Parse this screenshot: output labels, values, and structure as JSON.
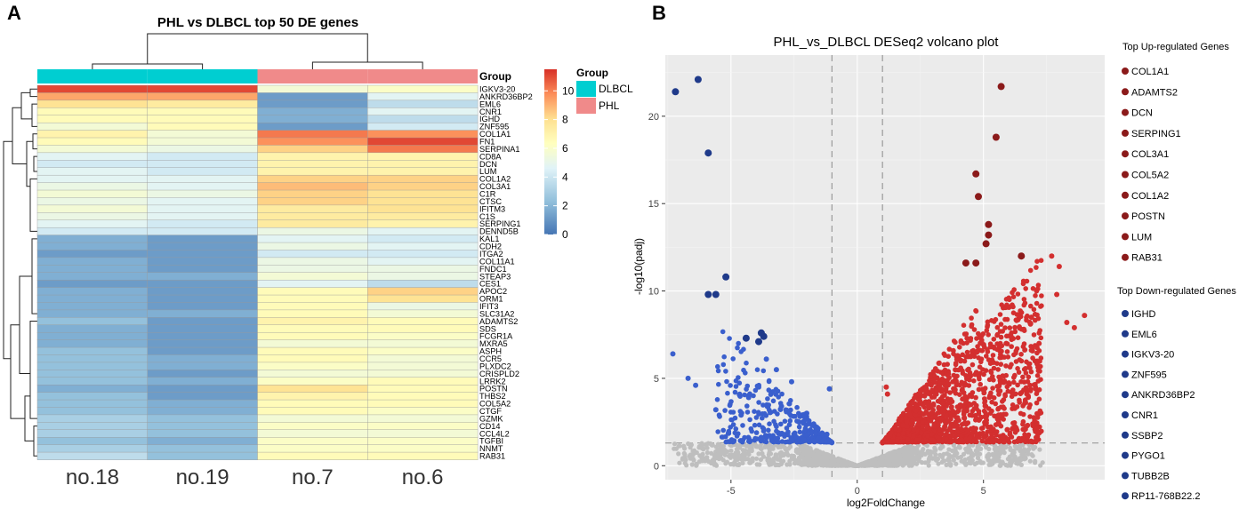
{
  "panels": {
    "a_label": "A",
    "b_label": "B"
  },
  "chart_data": [
    {
      "type": "heatmap",
      "title": "PHL vs DLBCL top 50 DE genes",
      "columns": [
        "no.18",
        "no.19",
        "no.7",
        "no.6"
      ],
      "group_header": "Group",
      "column_groups": [
        "DLBCL",
        "DLBCL",
        "PHL",
        "PHL"
      ],
      "legend": {
        "title": "Group",
        "items": [
          {
            "label": "DLBCL",
            "color": "#00ced1"
          },
          {
            "label": "PHL",
            "color": "#f08a8a"
          }
        ]
      },
      "colorbar": {
        "ticks": [
          10,
          8,
          6,
          4,
          2,
          0
        ],
        "range": [
          0,
          11.5
        ],
        "colors": [
          "#4575b4",
          "#91bfdb",
          "#e0f3f8",
          "#ffffbf",
          "#fee090",
          "#fc8d59",
          "#d73027"
        ]
      },
      "rows": [
        "IGKV3-20",
        "ANKRD36BP2",
        "EML6",
        "CNR1",
        "IGHD",
        "ZNF595",
        "COL1A1",
        "FN1",
        "SERPINA1",
        "CD8A",
        "DCN",
        "LUM",
        "COL1A2",
        "COL3A1",
        "C1R",
        "CTSC",
        "IFITM3",
        "C1S",
        "SERPING1",
        "DENND5B",
        "KAL1",
        "CDH2",
        "ITGA2",
        "COL11A1",
        "FNDC1",
        "STEAP3",
        "CES1",
        "APOC2",
        "ORM1",
        "IFIT3",
        "SLC31A2",
        "ADAMTS2",
        "SDS",
        "FCGR1A",
        "MXRA5",
        "ASPH",
        "CCR5",
        "PLXDC2",
        "CRISPLD2",
        "LRRK2",
        "POSTN",
        "THBS2",
        "COL5A2",
        "CTGF",
        "GZMK",
        "CD14",
        "CCL4L2",
        "TGFBI",
        "NNMT",
        "RAB31"
      ],
      "values": [
        [
          11,
          11,
          5,
          5.5
        ],
        [
          9,
          9,
          1,
          4
        ],
        [
          7.5,
          7,
          1,
          3
        ],
        [
          6,
          6,
          1.5,
          4
        ],
        [
          6,
          6,
          1.5,
          3
        ],
        [
          5,
          6,
          1,
          3.5
        ],
        [
          6.5,
          5,
          10,
          9.5
        ],
        [
          6,
          5,
          9.5,
          11
        ],
        [
          5,
          4.5,
          8,
          10
        ],
        [
          4,
          3.5,
          6.5,
          6.5
        ],
        [
          3.5,
          3.5,
          6.5,
          6.5
        ],
        [
          4,
          3.5,
          6.5,
          6.5
        ],
        [
          4,
          4,
          8,
          8
        ],
        [
          4.5,
          4,
          8.5,
          8
        ],
        [
          5,
          4.5,
          8,
          7.5
        ],
        [
          4.5,
          4,
          8,
          7.5
        ],
        [
          5,
          4,
          7,
          7.5
        ],
        [
          4.5,
          4,
          7,
          7
        ],
        [
          4,
          3.5,
          7,
          6.5
        ],
        [
          3.5,
          3.5,
          4.5,
          4
        ],
        [
          1.5,
          1,
          4,
          3.5
        ],
        [
          1.5,
          1,
          4.5,
          4
        ],
        [
          1,
          1,
          3.5,
          3.5
        ],
        [
          1.5,
          1,
          4.5,
          4
        ],
        [
          1.5,
          1,
          4.5,
          4.5
        ],
        [
          1.5,
          1.5,
          5,
          4.5
        ],
        [
          1,
          1,
          4,
          3
        ],
        [
          1.5,
          1,
          6,
          8
        ],
        [
          1.5,
          1,
          6,
          7.5
        ],
        [
          1.5,
          1,
          6,
          4.5
        ],
        [
          1.5,
          1.5,
          6,
          5
        ],
        [
          2,
          1,
          6.5,
          6
        ],
        [
          1.5,
          1,
          6,
          6
        ],
        [
          1.5,
          1,
          6,
          5.5
        ],
        [
          1.5,
          1,
          5,
          5
        ],
        [
          2,
          1,
          6,
          5.5
        ],
        [
          2,
          1.5,
          6,
          5
        ],
        [
          2,
          1.5,
          5.5,
          5
        ],
        [
          2,
          1,
          5,
          5
        ],
        [
          2,
          1.5,
          5.5,
          6
        ],
        [
          1.5,
          1,
          7.5,
          6
        ],
        [
          2,
          1,
          6.5,
          6
        ],
        [
          2,
          1.5,
          6,
          6
        ],
        [
          2,
          1.5,
          6,
          5.5
        ],
        [
          2.5,
          2,
          5,
          5
        ],
        [
          2.5,
          2,
          5.5,
          5.5
        ],
        [
          2.5,
          2,
          5,
          5
        ],
        [
          2,
          1.5,
          5.5,
          5.5
        ],
        [
          2.5,
          2,
          5.5,
          5.5
        ],
        [
          3,
          2,
          6,
          6
        ]
      ]
    },
    {
      "type": "scatter",
      "title": "PHL_vs_DLBCL DESeq2 volcano plot",
      "xlabel": "log2FoldChange",
      "ylabel": "-log10(padj)",
      "xlim": [
        -7.6,
        9.8
      ],
      "ylim": [
        -0.8,
        23.5
      ],
      "xticks": [
        -5,
        0,
        5
      ],
      "yticks": [
        0,
        5,
        10,
        15,
        20
      ],
      "thresholds": {
        "x": [
          -1,
          1
        ],
        "y": 1.3
      },
      "background": "#ebebeb",
      "series": [
        {
          "name": "not significant",
          "color": "#bebebe",
          "points": []
        },
        {
          "name": "down-regulated",
          "color": "#3a5fcd",
          "points": [
            [
              -7.3,
              6.4
            ],
            [
              -6.7,
              5.0
            ],
            [
              -6.4,
              4.6
            ],
            [
              -5.6,
              3.2
            ],
            [
              -4.6,
              2.9
            ],
            [
              -4.3,
              3.9
            ],
            [
              -3.9,
              4.5
            ],
            [
              -3.6,
              6.1
            ],
            [
              -3.2,
              5.5
            ],
            [
              -3.0,
              3.4
            ],
            [
              -2.6,
              4.8
            ],
            [
              -2.3,
              2.5
            ],
            [
              -2.0,
              3.0
            ],
            [
              -1.6,
              2.2
            ],
            [
              -1.2,
              1.8
            ],
            [
              -1.1,
              4.4
            ]
          ]
        },
        {
          "name": "up-regulated",
          "color": "#d32f2f",
          "points": [
            [
              1.2,
              4.1
            ],
            [
              1.15,
              4.5
            ],
            [
              6.6,
              7.8
            ],
            [
              7.2,
              7.0
            ],
            [
              7.9,
              9.8
            ],
            [
              8.3,
              8.2
            ],
            [
              8.6,
              7.9
            ],
            [
              9.0,
              8.6
            ],
            [
              7.7,
              12.0
            ],
            [
              8.0,
              11.4
            ],
            [
              6.9,
              8.5
            ],
            [
              5.9,
              7.0
            ]
          ]
        },
        {
          "name": "top down-regulated",
          "color": "#1f3a8a",
          "points": [
            [
              -7.2,
              21.4
            ],
            [
              -6.3,
              22.1
            ],
            [
              -5.9,
              17.9
            ],
            [
              -5.2,
              10.8
            ],
            [
              -5.6,
              9.8
            ],
            [
              -5.9,
              9.8
            ],
            [
              -4.4,
              7.3
            ],
            [
              -3.9,
              7.1
            ],
            [
              -3.8,
              7.6
            ],
            [
              -3.7,
              7.4
            ]
          ]
        },
        {
          "name": "top up-regulated",
          "color": "#8b1a1a",
          "points": [
            [
              5.7,
              21.7
            ],
            [
              5.5,
              18.8
            ],
            [
              4.7,
              16.7
            ],
            [
              4.8,
              15.4
            ],
            [
              5.2,
              13.8
            ],
            [
              5.2,
              13.2
            ],
            [
              5.1,
              12.7
            ],
            [
              6.5,
              12.0
            ],
            [
              4.3,
              11.6
            ],
            [
              4.7,
              11.6
            ]
          ]
        }
      ],
      "top_up_title": "Top Up-regulated Genes",
      "top_up": [
        "COL1A1",
        "ADAMTS2",
        "DCN",
        "SERPING1",
        "COL3A1",
        "COL5A2",
        "COL1A2",
        "POSTN",
        "LUM",
        "RAB31"
      ],
      "top_down_title": "Top Down-regulated Genes",
      "top_down": [
        "IGHD",
        "EML6",
        "IGKV3-20",
        "ZNF595",
        "ANKRD36BP2",
        "CNR1",
        "SSBP2",
        "PYGO1",
        "TUBB2B",
        "RP11-768B22.2"
      ]
    }
  ]
}
